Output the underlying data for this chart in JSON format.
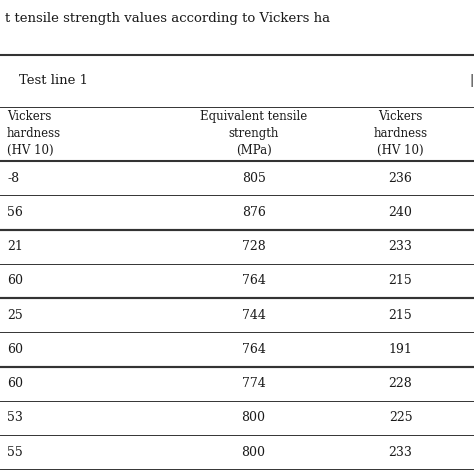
{
  "title": "t tensile strength values according to Vickers ha",
  "section_header": "Test line 1",
  "col1_header": [
    "Vickers",
    "hardness",
    "(HV 10)"
  ],
  "col2_header": [
    "Equivalent tensile",
    "strength",
    "(MPa)"
  ],
  "col3_header": [
    "Vickers",
    "hardness",
    "(HV 10)"
  ],
  "col1_partial": [
    "-8",
    "56",
    "21",
    "60",
    "25",
    "60",
    "60",
    "53",
    "55"
  ],
  "col2_values": [
    "805",
    "876",
    "728",
    "764",
    "744",
    "764",
    "774",
    "800",
    "800"
  ],
  "col3_values": [
    "236",
    "240",
    "233",
    "215",
    "215",
    "191",
    "228",
    "225",
    "233"
  ],
  "group_separators": [
    2,
    4,
    6
  ],
  "background_color": "#ffffff",
  "text_color": "#1a1a1a",
  "line_color": "#333333"
}
